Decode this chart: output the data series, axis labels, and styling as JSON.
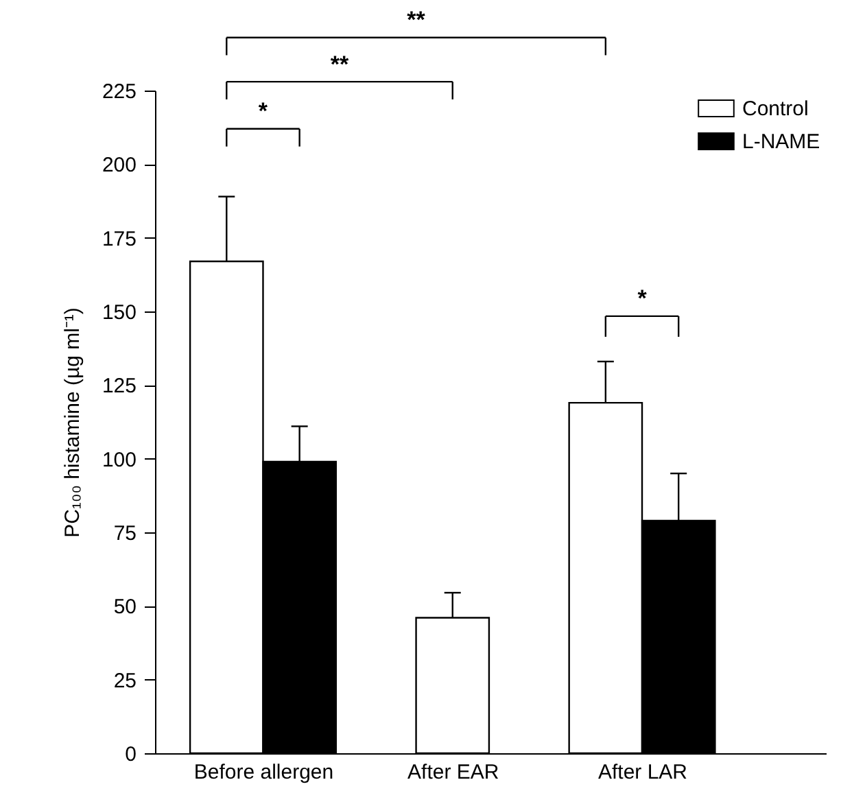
{
  "chart_data": {
    "type": "bar",
    "ylabel": "PC₁₀₀ histamine (µg ml⁻¹)",
    "categories": [
      "Before allergen",
      "After EAR",
      "After LAR"
    ],
    "series": [
      {
        "name": "Control",
        "color": "#ffffff",
        "values": [
          167,
          46,
          119
        ],
        "errors": [
          [
            167,
            189
          ],
          [
            46,
            54.5
          ],
          [
            119,
            133
          ]
        ]
      },
      {
        "name": "L-NAME",
        "color": "#000000",
        "values": [
          99,
          null,
          79
        ],
        "errors": [
          [
            99,
            111
          ],
          null,
          [
            79,
            95
          ]
        ]
      }
    ],
    "ylim": [
      0,
      225
    ],
    "yticks": [
      0,
      25,
      50,
      75,
      100,
      125,
      150,
      175,
      200,
      225
    ],
    "annotations": [
      "**",
      "**",
      "*",
      "*"
    ],
    "legend": "top right"
  }
}
